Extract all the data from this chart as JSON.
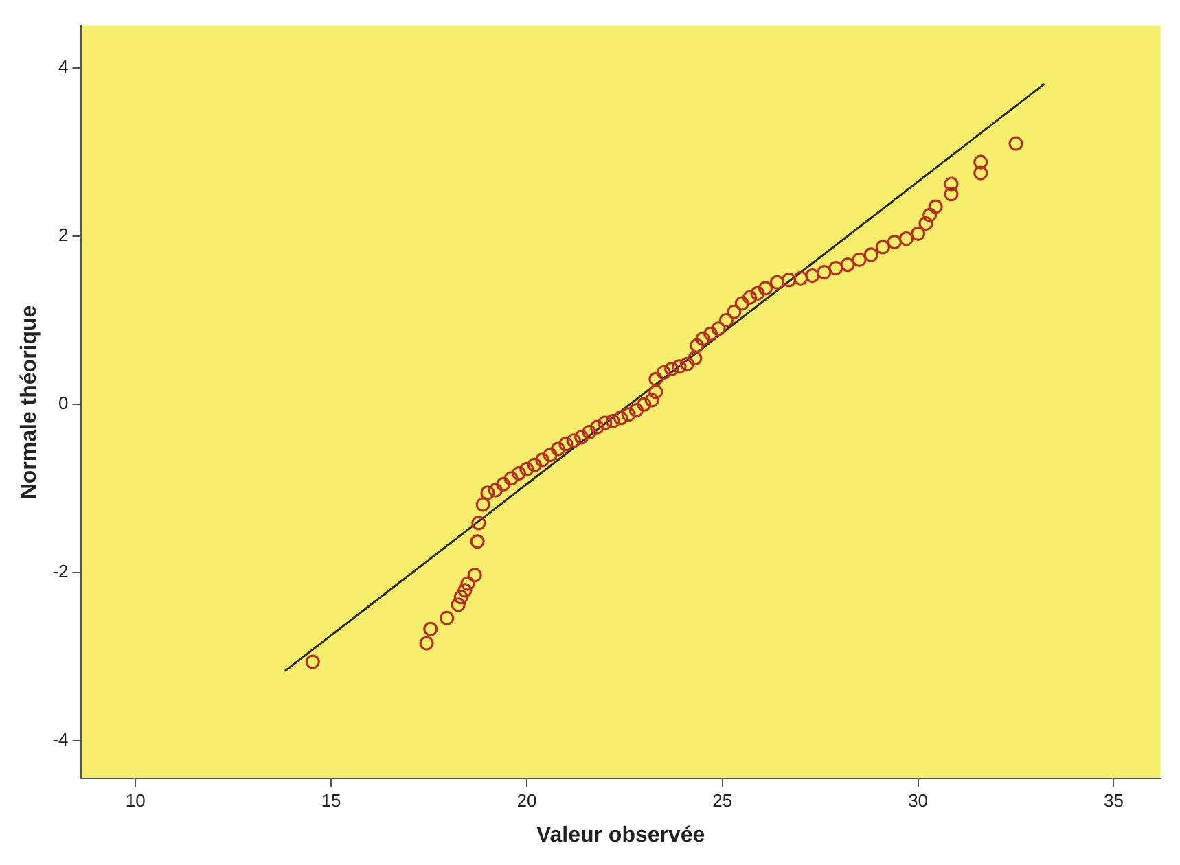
{
  "chart_data": {
    "type": "scatter",
    "xlabel": "Valeur observée",
    "ylabel": "Normale théorique",
    "xlim": [
      8.6,
      36.2
    ],
    "xticks": [
      10,
      15,
      20,
      25,
      30,
      35
    ],
    "ylim": [
      -4.45,
      4.5
    ],
    "yticks": [
      -4,
      -2,
      0,
      2,
      4
    ],
    "grid": false,
    "legend": false,
    "series": [
      {
        "marker": "circle",
        "color": "#b5301e",
        "x": [
          14.53,
          17.44,
          17.54,
          17.96,
          18.25,
          18.32,
          18.42,
          18.49,
          18.67,
          18.74,
          18.77,
          18.88,
          19.0,
          19.2,
          19.4,
          19.6,
          19.8,
          20.0,
          20.2,
          20.4,
          20.6,
          20.8,
          21.0,
          21.2,
          21.4,
          21.6,
          21.8,
          22.0,
          22.2,
          22.4,
          22.6,
          22.8,
          23.0,
          23.2,
          23.3,
          23.3,
          23.5,
          23.7,
          23.9,
          24.1,
          24.3,
          24.35,
          24.5,
          24.7,
          24.9,
          25.1,
          25.3,
          25.5,
          25.7,
          25.9,
          26.1,
          26.4,
          26.7,
          27.0,
          27.3,
          27.6,
          27.9,
          28.2,
          28.5,
          28.8,
          29.1,
          29.4,
          29.7,
          30.0,
          30.2,
          30.3,
          30.45,
          30.85,
          30.85,
          31.6,
          31.6,
          32.5
        ],
        "values": [
          -3.06,
          -2.84,
          -2.67,
          -2.54,
          -2.38,
          -2.29,
          -2.21,
          -2.13,
          -2.03,
          -1.63,
          -1.41,
          -1.19,
          -1.05,
          -1.02,
          -0.95,
          -0.88,
          -0.82,
          -0.77,
          -0.72,
          -0.66,
          -0.6,
          -0.53,
          -0.47,
          -0.43,
          -0.39,
          -0.33,
          -0.27,
          -0.22,
          -0.2,
          -0.16,
          -0.12,
          -0.07,
          0.0,
          0.05,
          0.15,
          0.3,
          0.38,
          0.42,
          0.45,
          0.48,
          0.55,
          0.7,
          0.78,
          0.84,
          0.9,
          1.0,
          1.1,
          1.2,
          1.27,
          1.32,
          1.38,
          1.45,
          1.48,
          1.5,
          1.53,
          1.57,
          1.62,
          1.66,
          1.72,
          1.78,
          1.87,
          1.93,
          1.97,
          2.03,
          2.15,
          2.25,
          2.35,
          2.5,
          2.62,
          2.75,
          2.88,
          3.1
        ]
      },
      {
        "type": "line",
        "color": "#2b2b2b",
        "x": [
          13.82,
          33.23
        ],
        "values": [
          -3.17,
          3.81
        ]
      }
    ]
  }
}
